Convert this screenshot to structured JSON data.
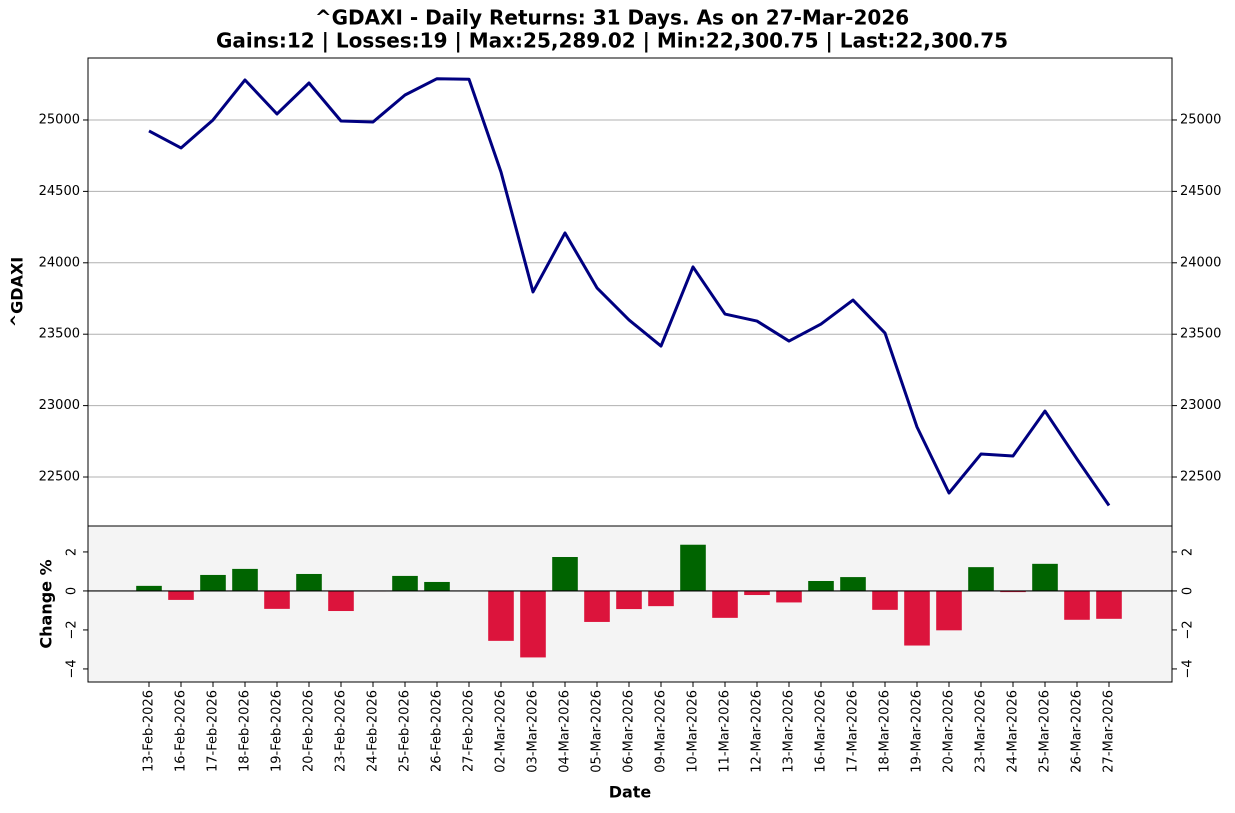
{
  "chart_data": [
    {
      "type": "line",
      "title": "^GDAXI - Daily Returns: 31 Days. As on 27-Mar-2026",
      "subtitle": "Gains:12 | Losses:19 | Max:25,289.02 | Min:22,300.75 | Last:22,300.75",
      "ylabel": "^GDAXI",
      "values": [
        24923,
        24804,
        25000,
        25280,
        25042,
        25259,
        24993,
        24986,
        25175,
        25289.02,
        25285,
        24636,
        23796,
        24209,
        23824,
        23600,
        23417,
        23971,
        23641,
        23592,
        23452,
        23571,
        23739,
        23508,
        22850,
        22388,
        22661,
        22647,
        22962,
        22626,
        22300.75
      ],
      "color": "#000080",
      "ylim": [
        22157,
        25434
      ],
      "yticks": [
        22500,
        23000,
        23500,
        24000,
        24500,
        25000
      ],
      "grid": true
    },
    {
      "type": "bar",
      "xlabel": "Date",
      "ylabel": "Change %",
      "categories": [
        "13-Feb-2026",
        "16-Feb-2026",
        "17-Feb-2026",
        "18-Feb-2026",
        "19-Feb-2026",
        "20-Feb-2026",
        "23-Feb-2026",
        "24-Feb-2026",
        "25-Feb-2026",
        "26-Feb-2026",
        "27-Feb-2026",
        "02-Mar-2026",
        "03-Mar-2026",
        "04-Mar-2026",
        "05-Mar-2026",
        "06-Mar-2026",
        "09-Mar-2026",
        "10-Mar-2026",
        "11-Mar-2026",
        "12-Mar-2026",
        "13-Mar-2026",
        "16-Mar-2026",
        "17-Mar-2026",
        "18-Mar-2026",
        "19-Mar-2026",
        "20-Mar-2026",
        "23-Mar-2026",
        "24-Mar-2026",
        "25-Mar-2026",
        "26-Mar-2026",
        "27-Mar-2026"
      ],
      "values": [
        0.26,
        -0.46,
        0.82,
        1.13,
        -0.92,
        0.87,
        -1.03,
        -0.03,
        0.77,
        0.46,
        -0.02,
        -2.56,
        -3.41,
        1.74,
        -1.59,
        -0.93,
        -0.78,
        2.37,
        -1.38,
        -0.21,
        -0.59,
        0.51,
        0.71,
        -0.97,
        -2.8,
        -2.02,
        1.22,
        -0.06,
        1.39,
        -1.48,
        -1.43
      ],
      "positive_color": "#006400",
      "negative_color": "#dc143c",
      "ylim": [
        -4.67,
        3.33
      ],
      "yticks": [
        {
          "value": -4,
          "label": "−4"
        },
        {
          "value": -2,
          "label": "−2"
        },
        0,
        2
      ],
      "background": "#f4f4f4"
    }
  ]
}
